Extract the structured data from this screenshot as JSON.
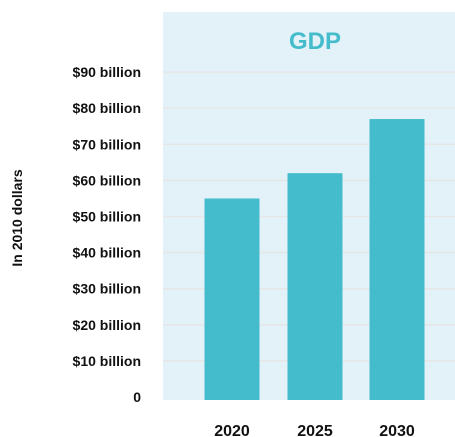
{
  "chart_data": {
    "type": "bar",
    "title": "GDP",
    "ylabel": "In 2010 dollars",
    "xlabel": "",
    "categories": [
      "2020",
      "2025",
      "2030"
    ],
    "values": [
      55,
      62,
      77
    ],
    "ylim": [
      0,
      100
    ],
    "yticks": [
      0,
      10,
      20,
      30,
      40,
      50,
      60,
      70,
      80,
      90
    ],
    "ytick_labels": [
      "0",
      "$10 billion",
      "$20 billion",
      "$30 billion",
      "$40 billion",
      "$50 billion",
      "$60 billion",
      "$70 billion",
      "$80 billion",
      "$90 billion"
    ],
    "grid": true,
    "colors": {
      "bar": "#45bccb",
      "plot_background": "#e2f2f8",
      "grid": "#e6e6e6",
      "title": "#45bccb"
    }
  }
}
